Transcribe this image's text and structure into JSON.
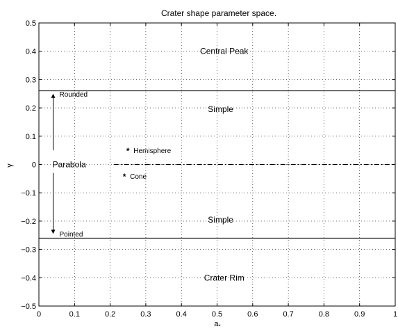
{
  "chart_data": {
    "type": "scatter",
    "title": "Crater shape parameter space.",
    "xlabel": "a",
    "xlabel_subscript": "*",
    "ylabel": "γ",
    "xlim": [
      0,
      1
    ],
    "ylim": [
      -0.5,
      0.5
    ],
    "grid": true,
    "x_ticks": [
      0,
      0.1,
      0.2,
      0.3,
      0.4,
      0.5,
      0.6,
      0.7,
      0.8,
      0.9,
      1
    ],
    "x_tick_labels": [
      "0",
      "0.1",
      "0.2",
      "0.3",
      "0.4",
      "0.5",
      "0.6",
      "0.7",
      "0.8",
      "0.9",
      "1"
    ],
    "y_ticks": [
      -0.5,
      -0.4,
      -0.3,
      -0.2,
      -0.1,
      0,
      0.1,
      0.2,
      0.3,
      0.4,
      0.5
    ],
    "y_tick_labels": [
      "−0.5",
      "−0.4",
      "−0.3",
      "−0.2",
      "−0.1",
      "0",
      "0.1",
      "0.2",
      "0.3",
      "0.4",
      "0.5"
    ],
    "boundary_lines": [
      {
        "y": 0.26,
        "style": "solid"
      },
      {
        "y": -0.26,
        "style": "solid"
      }
    ],
    "dashdot_line": {
      "y": 0,
      "x_from": 0.21,
      "x_to": 1,
      "style": "dash-dot"
    },
    "points": [
      {
        "label": "Hemisphere",
        "x": 0.25,
        "y": 0.05
      },
      {
        "label": "Cone",
        "x": 0.24,
        "y": -0.04
      }
    ],
    "arrows": [
      {
        "x": 0.04,
        "y_from": 0.05,
        "y_to": 0.25,
        "label": "Rounded"
      },
      {
        "x": 0.04,
        "y_from": -0.03,
        "y_to": -0.245,
        "label": "Pointed"
      }
    ],
    "region_labels": [
      {
        "text": "Central Peak",
        "x": 0.52,
        "y": 0.4
      },
      {
        "text": "Simple",
        "x": 0.51,
        "y": 0.195
      },
      {
        "text": "Parabola",
        "x": 0.085,
        "y": 0.0
      },
      {
        "text": "Simple",
        "x": 0.51,
        "y": -0.195
      },
      {
        "text": "Crater Rim",
        "x": 0.52,
        "y": -0.4
      }
    ]
  }
}
